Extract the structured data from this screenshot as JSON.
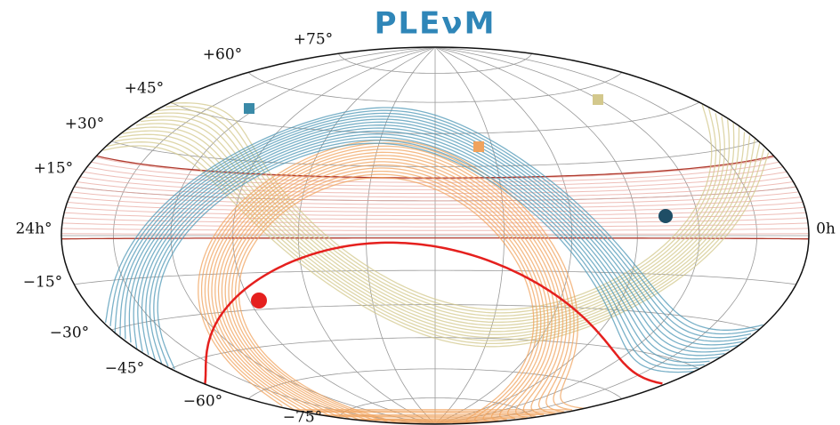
{
  "title": "PLEνM",
  "latitude_labels": [
    "+75°",
    "+60°",
    "+45°",
    "+30°",
    "+15°",
    "−15°",
    "−30°",
    "−45°",
    "−60°",
    "−75°"
  ],
  "left_label": "24h°",
  "right_label": "0h"
}
